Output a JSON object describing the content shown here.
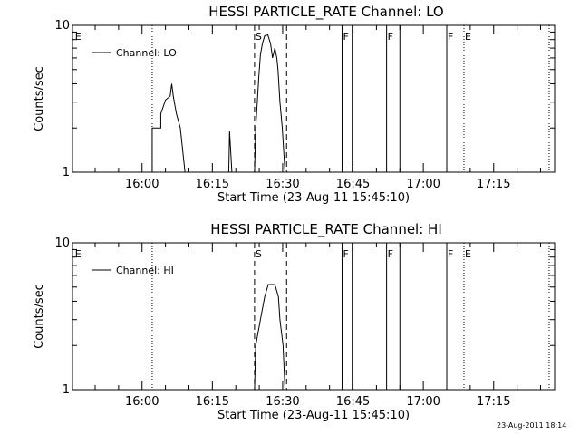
{
  "chart_data": [
    {
      "type": "line",
      "title": "HESSI PARTICLE_RATE Channel: LO",
      "xlabel": "Start Time (23-Aug-11 15:45:10)",
      "ylabel": "Counts/sec",
      "y_scale": "log",
      "ylim": [
        1,
        10
      ],
      "y_ticks": [
        {
          "v": 1,
          "label": "1"
        },
        {
          "v": 10,
          "label": "10"
        }
      ],
      "xlim": [
        "15:45:10",
        "17:28:00"
      ],
      "x_ticks": [
        "16:00",
        "16:15",
        "16:30",
        "16:45",
        "17:00",
        "17:15"
      ],
      "series": [
        {
          "name": "Channel: LO",
          "points": [
            [
              "16:02:10",
              1.0
            ],
            [
              "16:02:10",
              2.0
            ],
            [
              "16:04:00",
              2.0
            ],
            [
              "16:04:00",
              2.5
            ],
            [
              "16:05:00",
              3.1
            ],
            [
              "16:06:00",
              3.3
            ],
            [
              "16:06:20",
              4.0
            ],
            [
              "16:06:40",
              3.3
            ],
            [
              "16:07:20",
              2.5
            ],
            [
              "16:08:10",
              2.0
            ],
            [
              "16:09:10",
              1.0
            ],
            [
              "16:18:30",
              1.0
            ],
            [
              "16:18:40",
              1.9
            ],
            [
              "16:19:10",
              1.0
            ],
            [
              "16:24:00",
              1.0
            ],
            [
              "16:24:15",
              2.0
            ],
            [
              "16:24:35",
              3.0
            ],
            [
              "16:24:55",
              4.5
            ],
            [
              "16:25:15",
              6.3
            ],
            [
              "16:25:40",
              7.5
            ],
            [
              "16:26:10",
              8.5
            ],
            [
              "16:26:50",
              8.6
            ],
            [
              "16:27:25",
              7.5
            ],
            [
              "16:27:50",
              6.0
            ],
            [
              "16:28:20",
              7.0
            ],
            [
              "16:28:45",
              6.0
            ],
            [
              "16:29:00",
              5.0
            ],
            [
              "16:29:25",
              3.0
            ],
            [
              "16:29:55",
              2.0
            ],
            [
              "16:30:30",
              1.0
            ]
          ]
        }
      ],
      "legend_position": "top-left",
      "markers": [
        {
          "label": "E",
          "time": "15:45:30",
          "style": "none"
        },
        {
          "label": "",
          "time": "16:02:10",
          "style": "dotted"
        },
        {
          "label": "S",
          "time": "16:24:00",
          "style": "dashed"
        },
        {
          "label": "",
          "time": "16:30:50",
          "style": "dashed"
        },
        {
          "label": "F",
          "time": "16:42:40",
          "style": "solid"
        },
        {
          "label": "",
          "time": "16:44:50",
          "style": "solid"
        },
        {
          "label": "F",
          "time": "16:52:10",
          "style": "solid"
        },
        {
          "label": "",
          "time": "16:55:00",
          "style": "solid"
        },
        {
          "label": "F",
          "time": "17:05:00",
          "style": "solid"
        },
        {
          "label": "E",
          "time": "17:08:40",
          "style": "dotted"
        },
        {
          "label": "",
          "time": "17:26:50",
          "style": "dotted"
        }
      ]
    },
    {
      "type": "line",
      "title": "HESSI PARTICLE_RATE Channel: HI",
      "xlabel": "Start Time (23-Aug-11 15:45:10)",
      "ylabel": "Counts/sec",
      "y_scale": "log",
      "ylim": [
        1,
        10
      ],
      "y_ticks": [
        {
          "v": 1,
          "label": "1"
        },
        {
          "v": 10,
          "label": "10"
        }
      ],
      "xlim": [
        "15:45:10",
        "17:28:00"
      ],
      "x_ticks": [
        "16:00",
        "16:15",
        "16:30",
        "16:45",
        "17:00",
        "17:15"
      ],
      "series": [
        {
          "name": "Channel: HI",
          "points": [
            [
              "16:24:00",
              1.0
            ],
            [
              "16:24:15",
              2.0
            ],
            [
              "16:25:15",
              3.0
            ],
            [
              "16:26:10",
              4.3
            ],
            [
              "16:26:55",
              5.2
            ],
            [
              "16:28:20",
              5.2
            ],
            [
              "16:29:05",
              4.3
            ],
            [
              "16:29:25",
              3.0
            ],
            [
              "16:30:05",
              2.0
            ],
            [
              "16:30:30",
              1.0
            ]
          ]
        }
      ],
      "legend_position": "top-left",
      "markers": [
        {
          "label": "E",
          "time": "15:45:30",
          "style": "none"
        },
        {
          "label": "",
          "time": "16:02:10",
          "style": "dotted"
        },
        {
          "label": "S",
          "time": "16:24:00",
          "style": "dashed"
        },
        {
          "label": "",
          "time": "16:30:50",
          "style": "dashed"
        },
        {
          "label": "F",
          "time": "16:42:40",
          "style": "solid"
        },
        {
          "label": "",
          "time": "16:44:50",
          "style": "solid"
        },
        {
          "label": "F",
          "time": "16:52:10",
          "style": "solid"
        },
        {
          "label": "",
          "time": "16:55:00",
          "style": "solid"
        },
        {
          "label": "F",
          "time": "17:05:00",
          "style": "solid"
        },
        {
          "label": "E",
          "time": "17:08:40",
          "style": "dotted"
        },
        {
          "label": "",
          "time": "17:26:50",
          "style": "dotted"
        }
      ]
    }
  ],
  "footer": {
    "timestamp": "23-Aug-2011 18:14"
  }
}
